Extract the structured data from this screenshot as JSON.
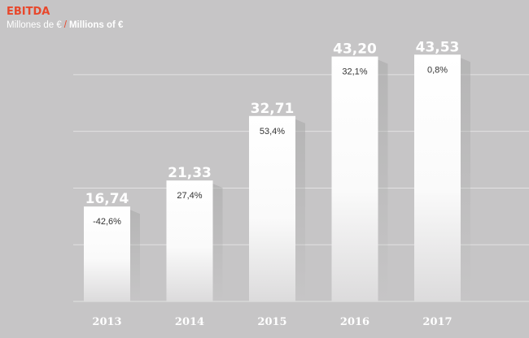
{
  "header": {
    "title": "EBITDA",
    "subtitle_es": "Millones de €",
    "subtitle_sep": "/",
    "subtitle_en": "Millions of €"
  },
  "colors": {
    "background": "#c6c5c6",
    "title": "#e8472b",
    "bar_top": "#ffffff",
    "bar_bottom": "#dcdbdc",
    "grid": "#e2e2e2"
  },
  "chart_data": {
    "type": "bar",
    "title": "EBITDA",
    "subtitle": "Millones de € / Millions of €",
    "categories": [
      "2013",
      "2014",
      "2015",
      "2016",
      "2017"
    ],
    "values": [
      16.74,
      21.33,
      32.71,
      43.2,
      43.53
    ],
    "value_labels": [
      "16,74",
      "21,33",
      "32,71",
      "43,20",
      "43,53"
    ],
    "change_labels": [
      "-42,6%",
      "27,4%",
      "53,4%",
      "32,1%",
      "0,8%"
    ],
    "ylim": [
      0,
      45
    ],
    "grid": true,
    "legend": "none"
  }
}
